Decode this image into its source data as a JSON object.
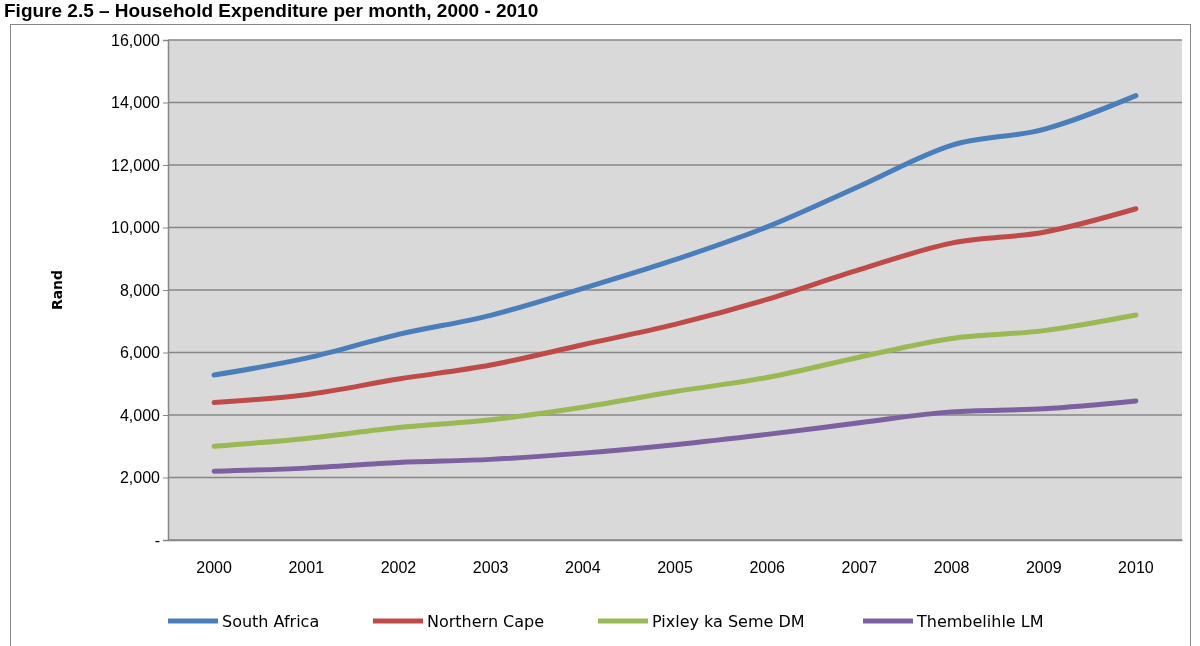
{
  "chart_data": {
    "type": "line",
    "title": "Figure 2.5 – Household Expenditure per month, 2000 - 2010",
    "ylabel": "Rand",
    "categories": [
      "2000",
      "2001",
      "2002",
      "2003",
      "2004",
      "2005",
      "2006",
      "2007",
      "2008",
      "2009",
      "2010"
    ],
    "series": [
      {
        "name": "South Africa",
        "color": "#4a7ebb",
        "values": [
          5280,
          5820,
          6580,
          7190,
          8050,
          8970,
          10020,
          11320,
          12630,
          13140,
          14220
        ]
      },
      {
        "name": "Northern Cape",
        "color": "#be4b48",
        "values": [
          4400,
          4650,
          5150,
          5600,
          6250,
          6900,
          7700,
          8650,
          9500,
          9850,
          10600
        ]
      },
      {
        "name": "Pixley ka Seme DM",
        "color": "#98b954",
        "values": [
          3000,
          3250,
          3600,
          3850,
          4250,
          4750,
          5200,
          5850,
          6450,
          6700,
          7200
        ]
      },
      {
        "name": "Thembelihle LM",
        "color": "#7d60a0",
        "values": [
          2200,
          2300,
          2480,
          2580,
          2780,
          3050,
          3380,
          3750,
          4100,
          4200,
          4450
        ]
      }
    ],
    "ylim": [
      0,
      16000
    ],
    "yticks": [
      {
        "value": 0,
        "label": "-"
      },
      {
        "value": 2000,
        "label": "2,000"
      },
      {
        "value": 4000,
        "label": "4,000"
      },
      {
        "value": 6000,
        "label": "6,000"
      },
      {
        "value": 8000,
        "label": "8,000"
      },
      {
        "value": 10000,
        "label": "10,000"
      },
      {
        "value": 12000,
        "label": "12,000"
      },
      {
        "value": 14000,
        "label": "14,000"
      },
      {
        "value": 16000,
        "label": "16,000"
      }
    ],
    "grid": "y",
    "legend": "bottom",
    "marker": "none",
    "line_style": "solid"
  }
}
